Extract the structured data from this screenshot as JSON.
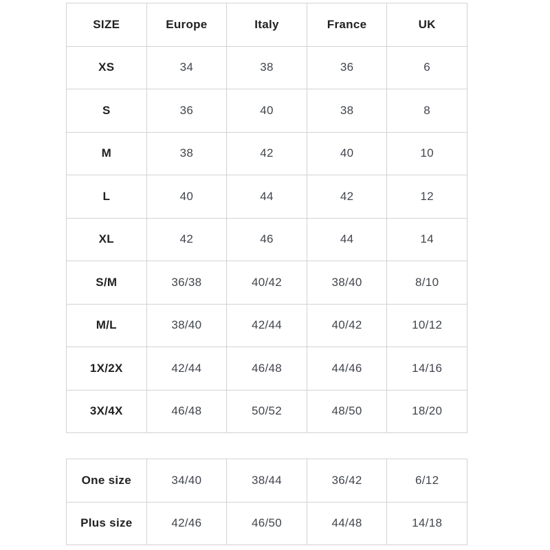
{
  "colors": {
    "background": "#ffffff",
    "border": "#d2d2d2",
    "header_text": "#212121",
    "value_text": "#41454c"
  },
  "table1": {
    "headers": [
      "SIZE",
      "Europe",
      "Italy",
      "France",
      "UK"
    ],
    "rows": [
      {
        "size": "XS",
        "values": [
          "34",
          "38",
          "36",
          "6"
        ]
      },
      {
        "size": "S",
        "values": [
          "36",
          "40",
          "38",
          "8"
        ]
      },
      {
        "size": "M",
        "values": [
          "38",
          "42",
          "40",
          "10"
        ]
      },
      {
        "size": "L",
        "values": [
          "40",
          "44",
          "42",
          "12"
        ]
      },
      {
        "size": "XL",
        "values": [
          "42",
          "46",
          "44",
          "14"
        ]
      },
      {
        "size": "S/M",
        "values": [
          "36/38",
          "40/42",
          "38/40",
          "8/10"
        ]
      },
      {
        "size": "M/L",
        "values": [
          "38/40",
          "42/44",
          "40/42",
          "10/12"
        ]
      },
      {
        "size": "1X/2X",
        "values": [
          "42/44",
          "46/48",
          "44/46",
          "14/16"
        ]
      },
      {
        "size": "3X/4X",
        "values": [
          "46/48",
          "50/52",
          "48/50",
          "18/20"
        ]
      }
    ]
  },
  "table2": {
    "rows": [
      {
        "size": "One size",
        "values": [
          "34/40",
          "38/44",
          "36/42",
          "6/12"
        ]
      },
      {
        "size": "Plus size",
        "values": [
          "42/46",
          "46/50",
          "44/48",
          "14/18"
        ]
      }
    ]
  }
}
